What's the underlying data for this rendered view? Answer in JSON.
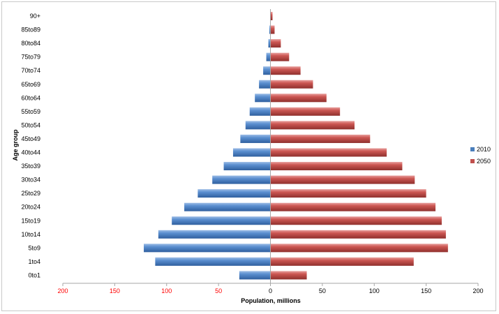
{
  "chart_data": {
    "type": "bar",
    "orientation": "horizontal",
    "layout": "population-pyramid",
    "title": "",
    "xlabel": "Population, millions",
    "ylabel": "Age group",
    "xlim": [
      -200,
      200
    ],
    "x_ticks": [
      {
        "value": -200,
        "label": "200"
      },
      {
        "value": -150,
        "label": "150"
      },
      {
        "value": -100,
        "label": "100"
      },
      {
        "value": -50,
        "label": "50"
      },
      {
        "value": 0,
        "label": "0"
      },
      {
        "value": 50,
        "label": "50"
      },
      {
        "value": 100,
        "label": "100"
      },
      {
        "value": 150,
        "label": "150"
      },
      {
        "value": 200,
        "label": "200"
      }
    ],
    "categories": [
      "0to1",
      "1to4",
      "5to9",
      "10to14",
      "15to19",
      "20to24",
      "25to29",
      "30to34",
      "35to39",
      "40to44",
      "45to49",
      "50to54",
      "55to59",
      "60to64",
      "65to69",
      "70to74",
      "75to79",
      "80to84",
      "85to89",
      "90+"
    ],
    "series": [
      {
        "name": "2010",
        "color": "#4a7ebb",
        "side": "left",
        "values": [
          30,
          111,
          122,
          108,
          95,
          83,
          70,
          56,
          45,
          36,
          29,
          24,
          20,
          15,
          11,
          7,
          4,
          2,
          1,
          0
        ]
      },
      {
        "name": "2050",
        "color": "#c0504d",
        "side": "right",
        "values": [
          35,
          138,
          171,
          169,
          165,
          159,
          150,
          139,
          127,
          112,
          96,
          81,
          67,
          54,
          41,
          29,
          18,
          10,
          4,
          2
        ]
      }
    ],
    "legend_position": "right",
    "grid": false,
    "colors": {
      "left_tick_labels": "#ff0000",
      "right_tick_labels": "#000000",
      "axis": "#a6a6a6"
    }
  }
}
